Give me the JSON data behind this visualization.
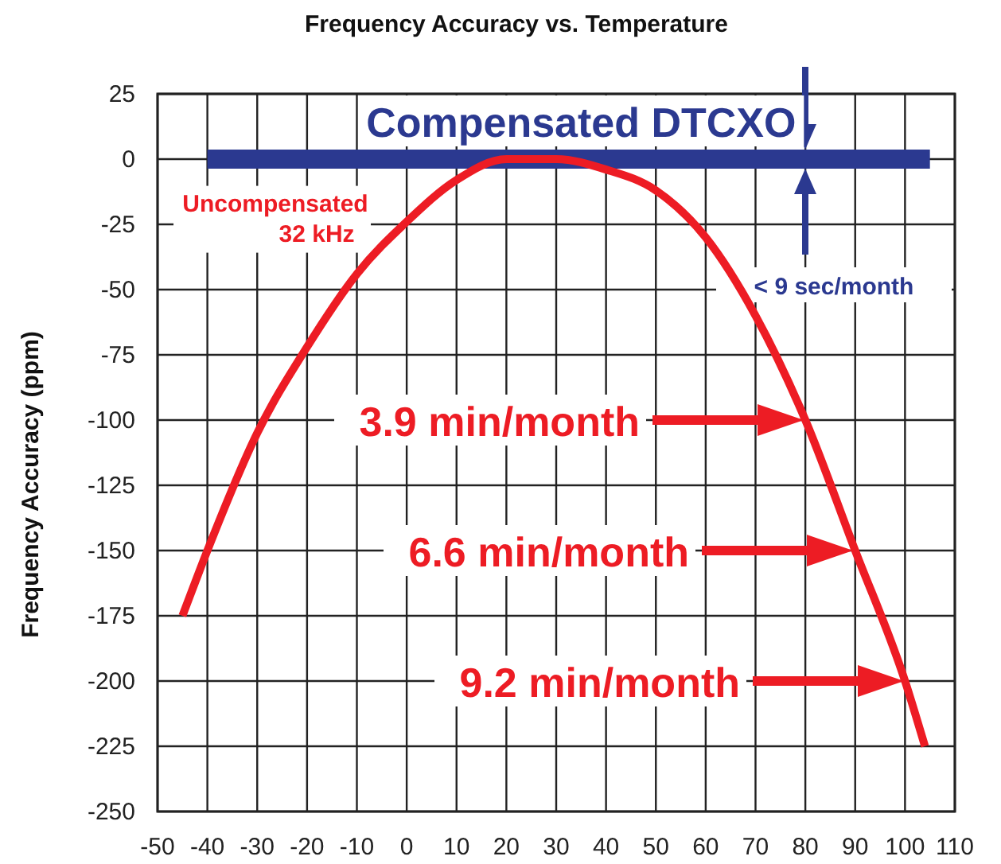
{
  "chart_data": {
    "type": "line",
    "title": "Frequency Accuracy vs. Temperature",
    "ylabel": "Frequency Accuracy (ppm)",
    "xlim": [
      -50,
      110
    ],
    "xticks": [
      -50,
      -40,
      -30,
      -20,
      -10,
      0,
      10,
      20,
      30,
      40,
      50,
      60,
      70,
      80,
      90,
      100,
      110
    ],
    "ylim": [
      -250,
      25
    ],
    "yticks": [
      25,
      0,
      -25,
      -50,
      -75,
      -100,
      -125,
      -150,
      -175,
      -200,
      -225,
      -250
    ],
    "grid": true,
    "marker": "none",
    "line_style": "solid",
    "series": [
      {
        "name": "Compensated DTCXO",
        "color": "#2b3990",
        "x": [
          -40,
          105
        ],
        "values": [
          0,
          0
        ]
      },
      {
        "name": "Uncompensated 32 kHz",
        "color": "#ed1c24",
        "x": [
          -45,
          -40,
          -30,
          -20,
          -10,
          0,
          10,
          20,
          30,
          40,
          50,
          60,
          70,
          80,
          90,
          100,
          104
        ],
        "values": [
          -175,
          -150,
          -105,
          -72,
          -44,
          -24,
          -8,
          0,
          0,
          -4,
          -12,
          -30,
          -60,
          -100,
          -150,
          -200,
          -225
        ]
      }
    ],
    "annotations": [
      "< 9 sec/month",
      "3.9 min/month",
      "6.6 min/month",
      "9.2 min/month"
    ]
  }
}
